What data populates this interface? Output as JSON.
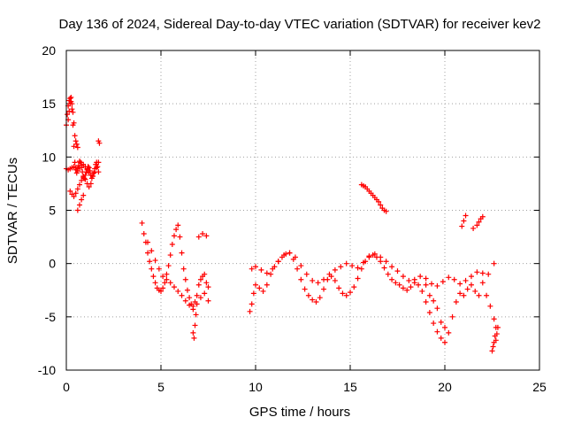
{
  "chart_data": {
    "type": "scatter",
    "title": "Day 136 of 2024, Sidereal Day-to-day VTEC variation (SDTVAR) for receiver kev2",
    "xlabel": "GPS time / hours",
    "ylabel": "SDTVAR / TECUs",
    "xlim": [
      0,
      25
    ],
    "ylim": [
      -10,
      20
    ],
    "xticks": [
      0,
      5,
      10,
      15,
      20,
      25
    ],
    "yticks": [
      -10,
      -5,
      0,
      5,
      10,
      15,
      20
    ],
    "xtick_labels": [
      "0",
      "5",
      "10",
      "15",
      "20",
      "25"
    ],
    "ytick_labels": [
      "-10",
      "-5",
      "0",
      "5",
      "10",
      "15",
      "20"
    ],
    "grid": true,
    "marker": "+",
    "color": "#ff0000",
    "series": [
      {
        "name": "kev2",
        "x": [
          0.0,
          0.05,
          0.1,
          0.15,
          0.2,
          0.25,
          0.3,
          0.35,
          0.4,
          0.45,
          0.5,
          0.55,
          0.6,
          0.65,
          0.7,
          0.75,
          0.8,
          0.85,
          0.9,
          0.95,
          1.0,
          1.05,
          1.1,
          1.15,
          1.2,
          1.25,
          1.3,
          1.35,
          1.4,
          1.45,
          1.5,
          1.55,
          1.6,
          1.65,
          1.7,
          0.1,
          0.15,
          0.2,
          0.25,
          0.3,
          0.35,
          0.4,
          0.45,
          0.5,
          0.55,
          0.6,
          0.0,
          0.1,
          0.2,
          0.3,
          0.4,
          0.5,
          0.6,
          0.7,
          0.8,
          0.9,
          1.0,
          1.1,
          1.2,
          1.3,
          1.4,
          1.5,
          1.6,
          1.7,
          0.2,
          0.3,
          0.4,
          0.5,
          0.6,
          0.7,
          0.8,
          0.9,
          1.0,
          1.1,
          1.2,
          1.3,
          0.6,
          0.7,
          0.8,
          0.9,
          1.7,
          1.75,
          4.0,
          4.1,
          4.2,
          4.3,
          4.4,
          4.5,
          4.6,
          4.7,
          4.8,
          4.9,
          5.0,
          5.1,
          5.2,
          5.3,
          5.4,
          5.5,
          5.6,
          5.7,
          5.8,
          5.9,
          6.0,
          6.1,
          6.2,
          6.3,
          6.4,
          6.5,
          6.6,
          6.7,
          6.8,
          6.9,
          7.0,
          7.1,
          7.2,
          7.3,
          7.4,
          7.5,
          4.3,
          4.5,
          4.7,
          4.9,
          5.1,
          5.3,
          5.5,
          5.7,
          5.9,
          6.1,
          6.3,
          6.5,
          6.7,
          6.9,
          7.1,
          7.3,
          7.5,
          6.7,
          6.75,
          6.8,
          6.85,
          7.0,
          7.2,
          7.4,
          9.7,
          9.8,
          9.9,
          10.0,
          10.2,
          10.4,
          10.6,
          10.8,
          11.0,
          11.2,
          11.4,
          11.6,
          11.8,
          12.0,
          12.2,
          12.4,
          12.6,
          12.8,
          13.0,
          13.2,
          13.4,
          13.6,
          13.8,
          14.0,
          14.2,
          14.4,
          14.6,
          14.8,
          15.0,
          15.2,
          15.4,
          15.6,
          15.8,
          16.0,
          16.2,
          16.4,
          16.6,
          16.8,
          17.0,
          17.2,
          17.4,
          17.6,
          17.8,
          18.0,
          18.2,
          18.4,
          18.6,
          18.8,
          19.0,
          19.2,
          19.4,
          19.6,
          19.8,
          20.0,
          20.2,
          20.4,
          20.6,
          20.8,
          21.0,
          21.2,
          21.4,
          21.6,
          21.8,
          22.0,
          22.2,
          22.4,
          22.6,
          22.7,
          9.8,
          10.0,
          10.3,
          10.6,
          10.9,
          11.2,
          11.5,
          11.8,
          12.1,
          12.4,
          12.7,
          13.0,
          13.3,
          13.6,
          13.9,
          14.2,
          14.5,
          14.8,
          15.1,
          15.4,
          15.7,
          16.0,
          16.3,
          16.6,
          16.9,
          17.2,
          17.5,
          17.8,
          18.1,
          18.4,
          18.7,
          19.0,
          19.3,
          19.6,
          19.9,
          20.2,
          20.5,
          20.8,
          21.1,
          21.4,
          21.7,
          22.0,
          22.3,
          22.6,
          15.6,
          15.7,
          15.8,
          15.9,
          16.0,
          16.1,
          16.2,
          16.3,
          16.4,
          16.5,
          16.6,
          16.7,
          16.8,
          16.9,
          19.0,
          19.2,
          19.4,
          19.6,
          19.8,
          20.0,
          20.9,
          21.0,
          21.1,
          21.5,
          21.7,
          21.8,
          21.9,
          22.0,
          22.5,
          22.55,
          22.6,
          22.65,
          22.7,
          22.75,
          22.8
        ],
        "y": [
          13.0,
          14.0,
          14.8,
          15.3,
          15.5,
          15.2,
          14.5,
          13.0,
          11.0,
          9.5,
          8.8,
          8.5,
          8.7,
          9.2,
          9.6,
          9.5,
          9.0,
          8.6,
          8.2,
          8.0,
          8.3,
          8.6,
          8.9,
          9.1,
          9.0,
          8.7,
          8.3,
          8.0,
          8.2,
          8.5,
          8.9,
          9.3,
          9.5,
          9.1,
          8.6,
          13.5,
          14.3,
          15.0,
          15.6,
          15.0,
          14.2,
          13.2,
          12.0,
          11.5,
          11.2,
          10.9,
          8.9,
          8.8,
          8.9,
          9.0,
          9.1,
          9.0,
          8.9,
          9.0,
          9.2,
          9.3,
          9.1,
          8.8,
          8.5,
          8.3,
          8.2,
          8.6,
          9.0,
          9.5,
          6.8,
          6.5,
          6.3,
          6.6,
          7.0,
          7.4,
          7.8,
          8.1,
          7.9,
          7.5,
          7.2,
          7.5,
          5.0,
          5.5,
          6.0,
          6.4,
          11.5,
          11.3,
          3.8,
          2.8,
          2.0,
          1.0,
          0.2,
          -0.5,
          -1.2,
          -1.8,
          -2.3,
          -2.5,
          -2.6,
          -2.3,
          -1.8,
          -1.0,
          -0.2,
          0.8,
          1.8,
          2.6,
          3.2,
          3.6,
          2.5,
          1.0,
          -0.5,
          -1.5,
          -2.5,
          -3.2,
          -3.8,
          -4.0,
          -3.6,
          -3.0,
          -2.0,
          -1.5,
          -1.2,
          -1.0,
          -1.8,
          -2.2,
          2.0,
          1.2,
          0.3,
          -0.5,
          -1.2,
          -1.5,
          -1.8,
          -2.2,
          -2.6,
          -3.0,
          -3.5,
          -3.9,
          -4.3,
          -3.8,
          -3.2,
          -2.8,
          -3.5,
          -6.5,
          -7.0,
          -5.8,
          -4.8,
          2.5,
          2.8,
          2.6,
          -4.5,
          -3.8,
          -2.8,
          -2.0,
          -2.3,
          -2.6,
          -2.0,
          -1.0,
          -0.3,
          0.2,
          0.6,
          0.9,
          1.0,
          0.4,
          -0.5,
          -1.5,
          -2.4,
          -3.0,
          -3.4,
          -3.6,
          -3.2,
          -2.4,
          -1.5,
          -1.2,
          -1.6,
          -2.3,
          -2.8,
          -3.0,
          -2.7,
          -2.2,
          -1.4,
          -0.5,
          0.2,
          0.6,
          0.8,
          0.6,
          0.2,
          -0.4,
          -1.0,
          -1.5,
          -1.8,
          -2.0,
          -2.3,
          -2.5,
          -2.2,
          -1.8,
          -2.0,
          -2.6,
          -3.6,
          -4.6,
          -5.6,
          -6.4,
          -7.0,
          -7.4,
          -6.5,
          -5.0,
          -3.6,
          -2.8,
          -3.0,
          -2.4,
          -2.0,
          -2.6,
          -3.0,
          -1.8,
          -3.0,
          -4.0,
          -5.2,
          -6.0,
          -0.5,
          -0.3,
          -0.6,
          -0.9,
          -0.5,
          0.2,
          0.8,
          1.0,
          0.6,
          -0.2,
          -1.0,
          -1.6,
          -1.8,
          -1.5,
          -1.0,
          -0.6,
          -0.3,
          0.0,
          -0.2,
          -0.4,
          0.1,
          0.7,
          0.9,
          0.6,
          0.2,
          -0.3,
          -0.7,
          -1.2,
          -1.6,
          -1.5,
          -1.2,
          -1.4,
          -1.9,
          -2.1,
          -1.7,
          -1.3,
          -1.5,
          -1.9,
          -1.6,
          -1.2,
          -0.8,
          -0.9,
          -1.0,
          0.0,
          7.4,
          7.3,
          7.2,
          7.0,
          6.8,
          6.6,
          6.4,
          6.2,
          6.0,
          5.8,
          5.5,
          5.2,
          5.0,
          4.9,
          -2.0,
          -3.0,
          -3.5,
          -4.2,
          -5.5,
          -6.0,
          3.5,
          4.0,
          4.5,
          3.3,
          3.6,
          3.9,
          4.2,
          4.4,
          -8.2,
          -7.8,
          -7.4,
          -6.8,
          -7.2,
          -6.6,
          -6.0
        ]
      }
    ]
  }
}
